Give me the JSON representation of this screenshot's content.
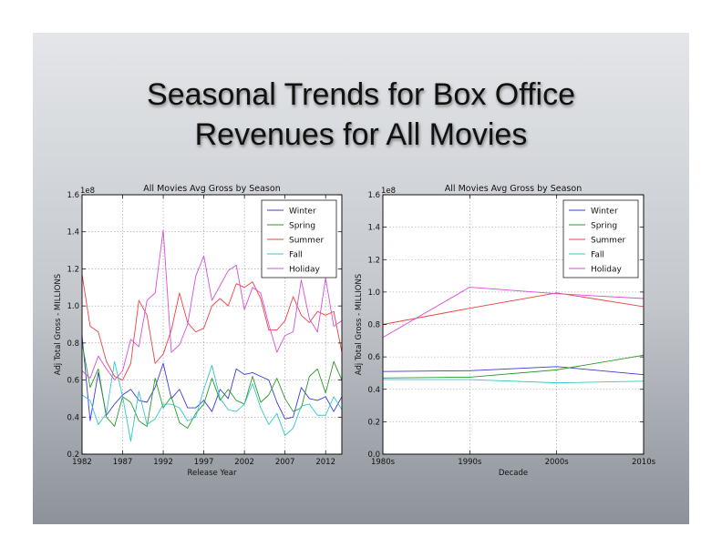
{
  "slide": {
    "title_line1": "Seasonal Trends for Box Office",
    "title_line2": "Revenues for All Movies"
  },
  "chart_data": [
    {
      "type": "line",
      "title": "All Movies Avg Gross by Season",
      "xlabel": "Release Year",
      "ylabel": "Adj Total Gross - MILLIONS",
      "offset_text": "1e8",
      "xlim": [
        1982,
        2014
      ],
      "ylim": [
        0.2,
        1.6
      ],
      "xticks": [
        1982,
        1987,
        1992,
        1997,
        2002,
        2007,
        2012
      ],
      "yticks": [
        0.2,
        0.4,
        0.6,
        0.8,
        1.0,
        1.2,
        1.4,
        1.6
      ],
      "ytick_labels": [
        "0.2",
        "0.4",
        "0.6",
        "0.8",
        "1.0",
        "1.2",
        "1.4",
        "1.6"
      ],
      "grid": true,
      "legend": "top-right",
      "x": [
        1982,
        1983,
        1984,
        1985,
        1986,
        1987,
        1988,
        1989,
        1990,
        1991,
        1992,
        1993,
        1994,
        1995,
        1996,
        1997,
        1998,
        1999,
        2000,
        2001,
        2002,
        2003,
        2004,
        2005,
        2006,
        2007,
        2008,
        2009,
        2010,
        2011,
        2012,
        2013,
        2014
      ],
      "series": [
        {
          "name": "Winter",
          "color": "#3b3bd4",
          "values": [
            0.84,
            0.38,
            0.64,
            0.41,
            0.47,
            0.52,
            0.55,
            0.49,
            0.48,
            0.56,
            0.69,
            0.5,
            0.55,
            0.45,
            0.45,
            0.49,
            0.43,
            0.55,
            0.5,
            0.66,
            0.63,
            0.64,
            0.62,
            0.6,
            0.48,
            0.39,
            0.4,
            0.56,
            0.5,
            0.49,
            0.51,
            0.43,
            0.51
          ]
        },
        {
          "name": "Spring",
          "color": "#2a9a2a",
          "values": [
            0.8,
            0.56,
            0.66,
            0.4,
            0.35,
            0.51,
            0.48,
            0.38,
            0.35,
            0.61,
            0.45,
            0.51,
            0.37,
            0.34,
            0.42,
            0.47,
            0.61,
            0.49,
            0.55,
            0.49,
            0.47,
            0.62,
            0.48,
            0.52,
            0.61,
            0.5,
            0.43,
            0.45,
            0.62,
            0.66,
            0.53,
            0.7,
            0.6
          ]
        },
        {
          "name": "Summer",
          "color": "#f04040",
          "values": [
            1.17,
            0.89,
            0.86,
            0.7,
            0.62,
            0.6,
            0.69,
            1.03,
            0.95,
            0.69,
            0.74,
            0.87,
            1.07,
            0.91,
            0.86,
            0.88,
            1.0,
            1.04,
            1.0,
            1.12,
            1.1,
            1.13,
            1.04,
            0.87,
            0.87,
            0.92,
            1.05,
            0.95,
            0.91,
            0.97,
            0.95,
            0.97,
            0.75
          ]
        },
        {
          "name": "Fall",
          "color": "#33c8c8",
          "values": [
            0.52,
            0.49,
            0.36,
            0.42,
            0.7,
            0.51,
            0.27,
            0.54,
            0.36,
            0.39,
            0.47,
            0.47,
            0.45,
            0.38,
            0.4,
            0.55,
            0.68,
            0.5,
            0.44,
            0.43,
            0.47,
            0.58,
            0.45,
            0.36,
            0.42,
            0.3,
            0.34,
            0.46,
            0.47,
            0.41,
            0.41,
            0.51,
            0.44
          ]
        },
        {
          "name": "Holiday",
          "color": "#d64fd6",
          "values": [
            0.65,
            0.61,
            0.73,
            0.66,
            0.6,
            0.65,
            0.82,
            0.78,
            1.03,
            1.07,
            1.41,
            0.75,
            0.79,
            0.9,
            1.16,
            1.27,
            1.03,
            1.11,
            1.19,
            1.22,
            0.98,
            1.1,
            1.07,
            0.9,
            0.75,
            0.84,
            0.86,
            1.14,
            0.93,
            0.86,
            1.15,
            0.89,
            0.92
          ]
        }
      ]
    },
    {
      "type": "line",
      "title": "All Movies Avg Gross by Season",
      "xlabel": "Decade",
      "ylabel": "Adj Total Gross - MILLIONS",
      "offset_text": "1e8",
      "categories": [
        "1980s",
        "1990s",
        "2000s",
        "2010s"
      ],
      "ylim": [
        0.0,
        1.6
      ],
      "yticks": [
        0.0,
        0.2,
        0.4,
        0.6,
        0.8,
        1.0,
        1.2,
        1.4,
        1.6
      ],
      "ytick_labels": [
        "0.0",
        "0.2",
        "0.4",
        "0.6",
        "0.8",
        "1.0",
        "1.2",
        "1.4",
        "1.6"
      ],
      "grid": true,
      "legend": "top-right",
      "series": [
        {
          "name": "Winter",
          "color": "#3b3bd4",
          "values": [
            0.51,
            0.515,
            0.54,
            0.49
          ]
        },
        {
          "name": "Spring",
          "color": "#2a9a2a",
          "values": [
            0.47,
            0.475,
            0.52,
            0.61
          ]
        },
        {
          "name": "Summer",
          "color": "#f04040",
          "values": [
            0.8,
            0.9,
            0.995,
            0.91
          ]
        },
        {
          "name": "Fall",
          "color": "#33c8c8",
          "values": [
            0.46,
            0.46,
            0.44,
            0.45
          ]
        },
        {
          "name": "Holiday",
          "color": "#d64fd6",
          "values": [
            0.72,
            1.03,
            0.99,
            0.96
          ]
        }
      ]
    }
  ]
}
